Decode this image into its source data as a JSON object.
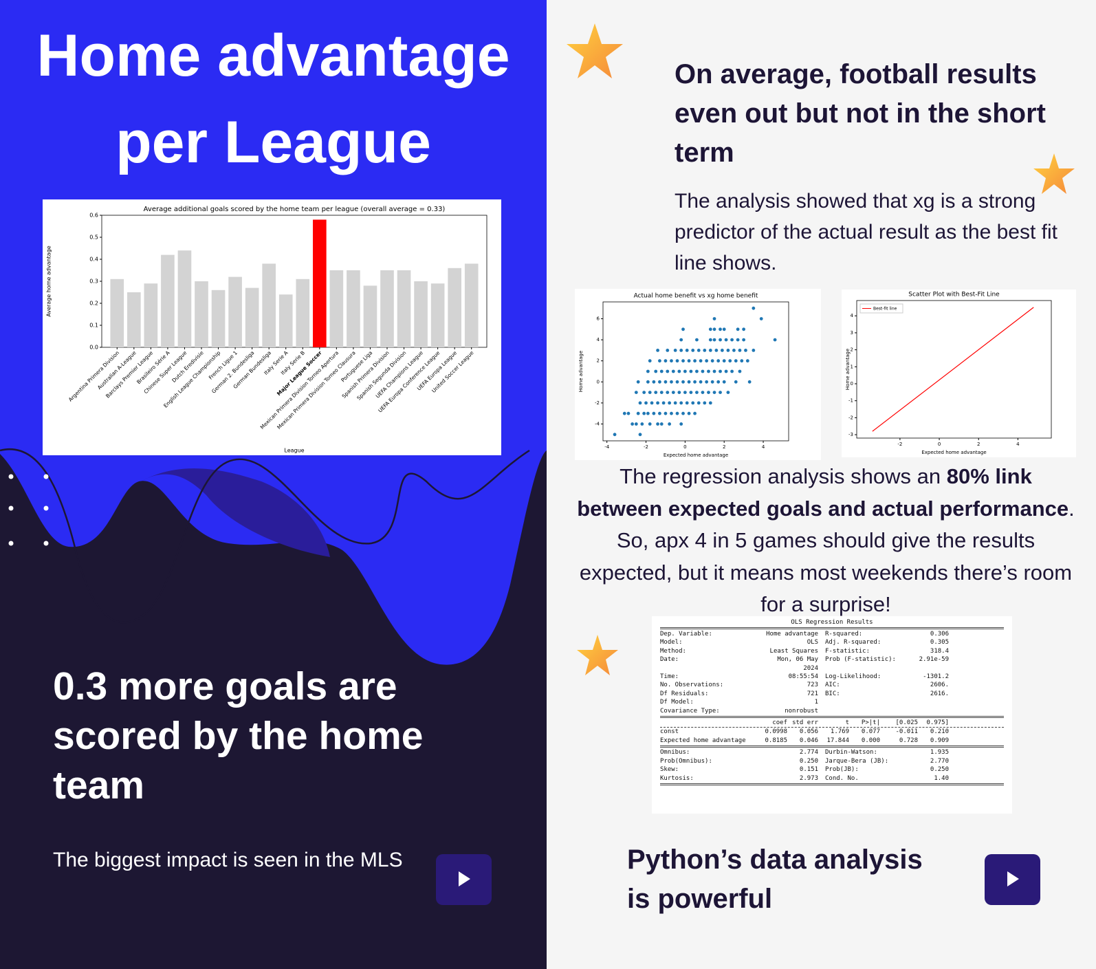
{
  "left": {
    "title": "Home advantage per League",
    "headline": "0.3 more goals are scored by the home team",
    "subtext": "The biggest impact is seen in the MLS"
  },
  "right": {
    "heading": "On average, football results even out but not in the short term",
    "paragraph": "The analysis showed that xg is a strong predictor of the actual result as the best fit line shows.",
    "regression_text": {
      "before": "The regression analysis shows an ",
      "bold": "80% link between expected goals and actual performance",
      "after": ". So, apx 4 in 5 games should give the results expected, but it means most weekends there’s room for a surprise!"
    },
    "footer": "Python’s data analysis is powerful"
  },
  "ols": {
    "title": "OLS Regression Results",
    "top": [
      [
        "Dep. Variable:",
        "Home advantage",
        "R-squared:",
        "0.306"
      ],
      [
        "Model:",
        "OLS",
        "Adj. R-squared:",
        "0.305"
      ],
      [
        "Method:",
        "Least Squares",
        "F-statistic:",
        "318.4"
      ],
      [
        "Date:",
        "Mon, 06 May 2024",
        "Prob (F-statistic):",
        "2.91e-59"
      ],
      [
        "Time:",
        "08:55:54",
        "Log-Likelihood:",
        "-1301.2"
      ],
      [
        "No. Observations:",
        "723",
        "AIC:",
        "2606."
      ],
      [
        "Df Residuals:",
        "721",
        "BIC:",
        "2616."
      ],
      [
        "Df Model:",
        "1"
      ],
      [
        "Covariance Type:",
        "nonrobust"
      ]
    ],
    "coef_header": [
      "coef",
      "std err",
      "t",
      "P>|t|",
      "[0.025",
      "0.975]"
    ],
    "coef_rows": [
      [
        "const",
        "0.0998",
        "0.056",
        "1.769",
        "0.077",
        "-0.011",
        "0.210"
      ],
      [
        "Expected home advantage",
        "0.8185",
        "0.046",
        "17.844",
        "0.000",
        "0.728",
        "0.909"
      ]
    ],
    "bottom": [
      [
        "Omnibus:",
        "2.774",
        "Durbin-Watson:",
        "1.935"
      ],
      [
        "Prob(Omnibus):",
        "0.250",
        "Jarque-Bera (JB):",
        "2.770"
      ],
      [
        "Skew:",
        "0.151",
        "Prob(JB):",
        "0.250"
      ],
      [
        "Kurtosis:",
        "2.973",
        "Cond. No.",
        "1.40"
      ]
    ]
  },
  "chart_data": [
    {
      "type": "bar",
      "title": "Average additional goals scored by the home team per league (overall average = 0.33)",
      "x_label": "League",
      "y_label": "Average home advantage",
      "categories": [
        "Argentina Primera Division",
        "Australian A-League",
        "Barclays Premier League",
        "Brasileiro Série A",
        "Chinese Super League",
        "Dutch Eredivisie",
        "English League Championship",
        "French Ligue 1",
        "German 2. Bundesliga",
        "German Bundesliga",
        "Italy Serie A",
        "Italy Serie B",
        "Major League Soccer",
        "Mexican Primera Division Torneo Apertura",
        "Mexican Primera Division Torneo Clausura",
        "Portuguese Liga",
        "Spanish Primera Division",
        "Spanish Segunda Division",
        "UEFA Champions League",
        "UEFA Europa Conference League",
        "UEFA Europa League",
        "United Soccer League"
      ],
      "values": [
        0.31,
        0.25,
        0.29,
        0.42,
        0.44,
        0.3,
        0.26,
        0.32,
        0.27,
        0.38,
        0.24,
        0.31,
        0.58,
        0.35,
        0.35,
        0.28,
        0.35,
        0.35,
        0.3,
        0.29,
        0.36,
        0.38
      ],
      "colors": [
        "#d3d3d3",
        "#d3d3d3",
        "#d3d3d3",
        "#d3d3d3",
        "#d3d3d3",
        "#d3d3d3",
        "#d3d3d3",
        "#d3d3d3",
        "#d3d3d3",
        "#d3d3d3",
        "#d3d3d3",
        "#d3d3d3",
        "#ff0000",
        "#d3d3d3",
        "#d3d3d3",
        "#d3d3d3",
        "#d3d3d3",
        "#d3d3d3",
        "#d3d3d3",
        "#d3d3d3",
        "#d3d3d3",
        "#d3d3d3"
      ],
      "ylim": [
        0,
        0.6
      ],
      "yticks": [
        {
          "value": 0,
          "label": "0.0"
        },
        0.1,
        0.2,
        0.3,
        0.4,
        0.5,
        0.6
      ]
    },
    {
      "type": "scatter",
      "title": "Actual home benefit vs xg home benefit",
      "x_label": "Expected home advantage",
      "y_label": "Home advantage",
      "color": "#1f77b4",
      "x": [
        -3.6,
        -2.3,
        -2.7,
        -2.5,
        -2.2,
        -1.8,
        -1.4,
        -1.2,
        -0.8,
        -0.2,
        -3.1,
        -2.9,
        -2.4,
        -2.1,
        -1.9,
        -1.6,
        -1.3,
        -1.0,
        -0.7,
        -0.4,
        -0.1,
        0.2,
        0.5,
        -2.3,
        -2.0,
        -1.7,
        -1.4,
        -1.1,
        -0.8,
        -0.5,
        -0.2,
        0.1,
        0.4,
        0.7,
        1.0,
        1.3,
        -2.5,
        -2.1,
        -1.8,
        -1.5,
        -1.2,
        -0.9,
        -0.6,
        -0.3,
        0.0,
        0.3,
        0.6,
        0.9,
        1.2,
        1.5,
        1.8,
        2.2,
        -2.4,
        -1.9,
        -1.6,
        -1.3,
        -1.0,
        -0.7,
        -0.4,
        -0.1,
        0.2,
        0.5,
        0.8,
        1.1,
        1.4,
        1.7,
        2.0,
        2.6,
        3.3,
        -1.9,
        -1.5,
        -1.2,
        -0.9,
        -0.6,
        -0.3,
        0.0,
        0.3,
        0.6,
        0.9,
        1.2,
        1.5,
        1.8,
        2.1,
        2.4,
        2.8,
        -1.8,
        -1.3,
        -1.0,
        -0.7,
        -0.4,
        -0.1,
        0.2,
        0.5,
        0.8,
        1.1,
        1.4,
        1.7,
        2.0,
        2.3,
        2.6,
        2.9,
        3.2,
        -1.4,
        -0.9,
        -0.5,
        -0.2,
        0.1,
        0.4,
        0.7,
        1.0,
        1.3,
        1.6,
        1.9,
        2.2,
        2.5,
        2.8,
        3.1,
        3.5,
        -0.2,
        0.6,
        1.3,
        1.5,
        1.8,
        2.1,
        2.4,
        2.7,
        3.0,
        4.6,
        -0.1,
        1.3,
        1.5,
        1.8,
        2.0,
        2.7,
        3.0,
        1.5,
        3.9,
        3.5
      ],
      "values": [
        -5,
        -5,
        -4,
        -4,
        -4,
        -4,
        -4,
        -4,
        -4,
        -4,
        -3,
        -3,
        -3,
        -3,
        -3,
        -3,
        -3,
        -3,
        -3,
        -3,
        -3,
        -3,
        -3,
        -2,
        -2,
        -2,
        -2,
        -2,
        -2,
        -2,
        -2,
        -2,
        -2,
        -2,
        -2,
        -2,
        -1,
        -1,
        -1,
        -1,
        -1,
        -1,
        -1,
        -1,
        -1,
        -1,
        -1,
        -1,
        -1,
        -1,
        -1,
        -1,
        0,
        0,
        0,
        0,
        0,
        0,
        0,
        0,
        0,
        0,
        0,
        0,
        0,
        0,
        0,
        0,
        0,
        1,
        1,
        1,
        1,
        1,
        1,
        1,
        1,
        1,
        1,
        1,
        1,
        1,
        1,
        1,
        1,
        2,
        2,
        2,
        2,
        2,
        2,
        2,
        2,
        2,
        2,
        2,
        2,
        2,
        2,
        2,
        2,
        2,
        3,
        3,
        3,
        3,
        3,
        3,
        3,
        3,
        3,
        3,
        3,
        3,
        3,
        3,
        3,
        3,
        4,
        4,
        4,
        4,
        4,
        4,
        4,
        4,
        4,
        4,
        5,
        5,
        5,
        5,
        5,
        5,
        5,
        6,
        6,
        7
      ],
      "xlim": [
        -4.2,
        5.3
      ],
      "xticks": [
        -4,
        -2,
        0,
        2,
        4
      ],
      "ylim": [
        -5.6,
        7.6
      ],
      "yticks": [
        -4,
        -2,
        0,
        2,
        4,
        6
      ]
    },
    {
      "type": "line",
      "title": "Scatter Plot with Best-Fit Line",
      "x_label": "Expected home advantage",
      "y_label": "Home advantage",
      "legend": "upper left",
      "series": [
        {
          "name": "Best-fit line",
          "color": "#ff0000",
          "x": [
            -3.4,
            4.8
          ],
          "values": [
            -2.8,
            4.5
          ]
        }
      ],
      "xlim": [
        -4.2,
        5.7
      ],
      "xticks": [
        -2,
        0,
        2,
        4
      ],
      "ylim": [
        -3.2,
        4.9
      ],
      "yticks": [
        -3,
        -2,
        -1,
        0,
        1,
        2,
        3,
        4
      ]
    }
  ]
}
